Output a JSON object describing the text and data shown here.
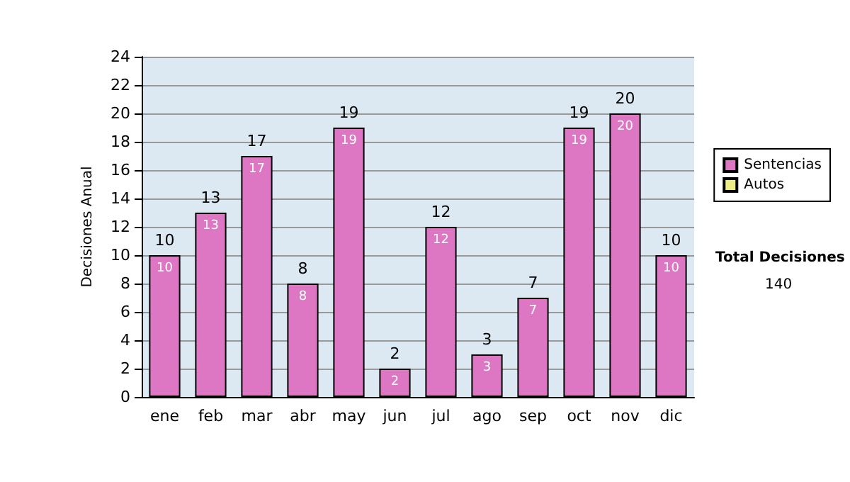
{
  "chart_data": {
    "type": "bar",
    "ylabel": "Decisiones Anual",
    "categories": [
      "ene",
      "feb",
      "mar",
      "abr",
      "may",
      "jun",
      "jul",
      "ago",
      "sep",
      "oct",
      "nov",
      "dic"
    ],
    "series": [
      {
        "name": "Sentencias",
        "color": "#dd77c4",
        "values": [
          10,
          13,
          17,
          8,
          19,
          2,
          12,
          3,
          7,
          19,
          20,
          10
        ],
        "value_labels": [
          "10",
          "13",
          "17",
          "8",
          "19",
          "2",
          "12",
          "3",
          "7",
          "19",
          "20",
          "10"
        ]
      },
      {
        "name": "Autos",
        "color": "#eeee88",
        "values": [
          null,
          null,
          null,
          null,
          null,
          null,
          null,
          null,
          null,
          null,
          null,
          null
        ]
      }
    ],
    "stacked": true,
    "ylim": [
      0,
      24
    ],
    "yticks": [
      0,
      2,
      4,
      6,
      8,
      10,
      12,
      14,
      16,
      18,
      20,
      22,
      24
    ],
    "grid": "y",
    "legend": "right",
    "annotations": [
      "Total Decisiones",
      "140"
    ]
  }
}
